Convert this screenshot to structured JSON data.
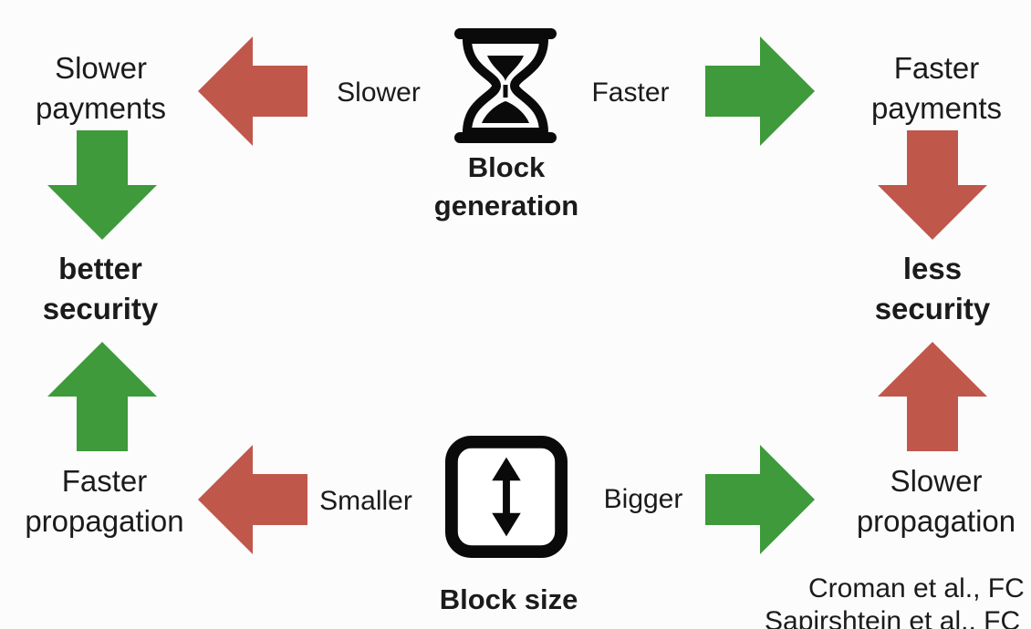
{
  "colors": {
    "green": "#3e9a3b",
    "red": "#c0574b",
    "text": "#1b1b1b",
    "background": "#fcfcfd"
  },
  "nodes": {
    "block_generation": {
      "line1": "Block",
      "line2": "generation",
      "icon": "hourglass-icon"
    },
    "block_size": {
      "label": "Block size",
      "icon": "vertical-resize-icon"
    },
    "top_left": {
      "line1": "Slower",
      "line2": "payments"
    },
    "top_right": {
      "line1": "Faster",
      "line2": "payments"
    },
    "mid_left": {
      "line1": "better",
      "line2": "security"
    },
    "mid_right": {
      "line1": "less",
      "line2": "security"
    },
    "bottom_left": {
      "line1": "Faster",
      "line2": "propagation"
    },
    "bottom_right": {
      "line1": "Slower",
      "line2": "propagation"
    }
  },
  "edges": {
    "slower": "Slower",
    "faster": "Faster",
    "smaller": "Smaller",
    "bigger": "Bigger"
  },
  "arrows": {
    "top_left": {
      "direction": "left",
      "color": "red"
    },
    "top_right": {
      "direction": "right",
      "color": "green"
    },
    "bottom_left": {
      "direction": "left",
      "color": "red"
    },
    "bottom_right": {
      "direction": "right",
      "color": "green"
    },
    "left_upper": {
      "direction": "down",
      "color": "green"
    },
    "left_lower": {
      "direction": "up",
      "color": "green"
    },
    "right_upper": {
      "direction": "down",
      "color": "red"
    },
    "right_lower": {
      "direction": "up",
      "color": "red"
    }
  },
  "citations": {
    "line1": "Croman et al., FC",
    "line2": "Sapirshtein et al., FC"
  }
}
